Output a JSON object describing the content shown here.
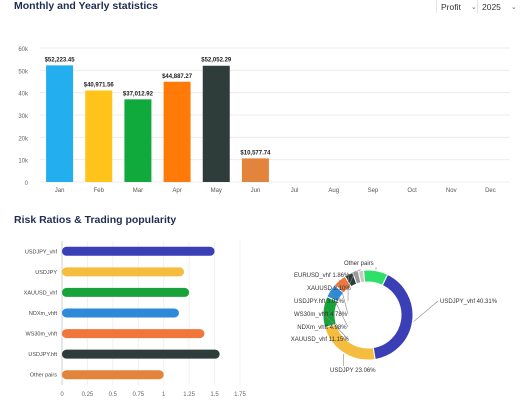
{
  "header": {
    "title": "Monthly and Yearly statistics",
    "metric_select": "Profit",
    "year_select": "2025"
  },
  "section2": {
    "title": "Risk Ratios & Trading popularity"
  },
  "chart_data": [
    {
      "type": "bar",
      "categories": [
        "Jan",
        "Feb",
        "Mar",
        "Apr",
        "May",
        "Jun",
        "Jul",
        "Aug",
        "Sep",
        "Oct",
        "Nov",
        "Dec"
      ],
      "values": [
        52223.45,
        40971.56,
        37012.92,
        44887.27,
        52052.29,
        10577.74,
        null,
        null,
        null,
        null,
        null,
        null
      ],
      "value_labels": [
        "$52,223.45",
        "$40,971.56",
        "$37,012.92",
        "$44,887.27",
        "$52,052.29",
        "$10,577.74",
        "",
        "",
        "",
        "",
        "",
        ""
      ],
      "colors": [
        "#23aef0",
        "#ffc31a",
        "#10aa3c",
        "#ff7a08",
        "#2e3c3a",
        "#e3843c"
      ],
      "ylim": [
        0,
        60000
      ],
      "yticks": [
        0,
        10000,
        20000,
        30000,
        40000,
        50000,
        60000
      ],
      "ytick_labels": [
        "0",
        "10k",
        "20k",
        "30k",
        "40k",
        "50k",
        "60k"
      ],
      "grid": true
    },
    {
      "type": "bar",
      "orientation": "horizontal",
      "categories": [
        "USDJPY_vhf",
        "USDJPY",
        "XAUUSD_vhf",
        "NDXm_vhft",
        "WS30m_vhft",
        "USDJPY.hft",
        "Other pairs"
      ],
      "values": [
        1.5,
        1.2,
        1.25,
        1.15,
        1.4,
        1.55,
        1.0
      ],
      "colors": [
        "#3a3fb5",
        "#f5bd3f",
        "#17a23a",
        "#2e8ad8",
        "#f0763c",
        "#2e3c3a",
        "#e3843c"
      ],
      "xlim": [
        0,
        1.75
      ],
      "xticks": [
        0,
        0.25,
        0.5,
        0.75,
        1,
        1.25,
        1.5,
        1.75
      ],
      "xtick_labels": [
        "0",
        "0.25",
        "0.5",
        "0.75",
        "1",
        "1.25",
        "1.5",
        "1.75"
      ]
    },
    {
      "type": "pie",
      "donut": true,
      "labels": [
        "USDJPY_vhf",
        "USDJPY",
        "XAUUSD_vhf",
        "NDXm_vhft",
        "WS30m_vhft",
        "USDJPY.hft",
        "XAUUSD",
        "EURUSD_vhf",
        "Other pairs"
      ],
      "values": [
        40.31,
        23.06,
        11.15,
        4.98,
        4.78,
        3.01,
        2.1,
        1.86,
        8.75
      ],
      "display_labels": [
        "USDJPY_vhf 40.31%",
        "USDJPY 23.06%",
        "XAUUSD_vhf 11.15%",
        "NDXm_vhft 4.98%",
        "WS30m_vhft 4.78%",
        "USDJPY.hft 3.01%",
        "XAUUSD 2.10%",
        "EURUSD_vhf 1.86%",
        "Other pairs"
      ],
      "colors": [
        "#3a3fb5",
        "#f5bd3f",
        "#17a23a",
        "#2e8ad8",
        "#f0763c",
        "#2e3c3a",
        "#9a9a9a",
        "#c9c9c9",
        "#2ee06a"
      ]
    }
  ]
}
